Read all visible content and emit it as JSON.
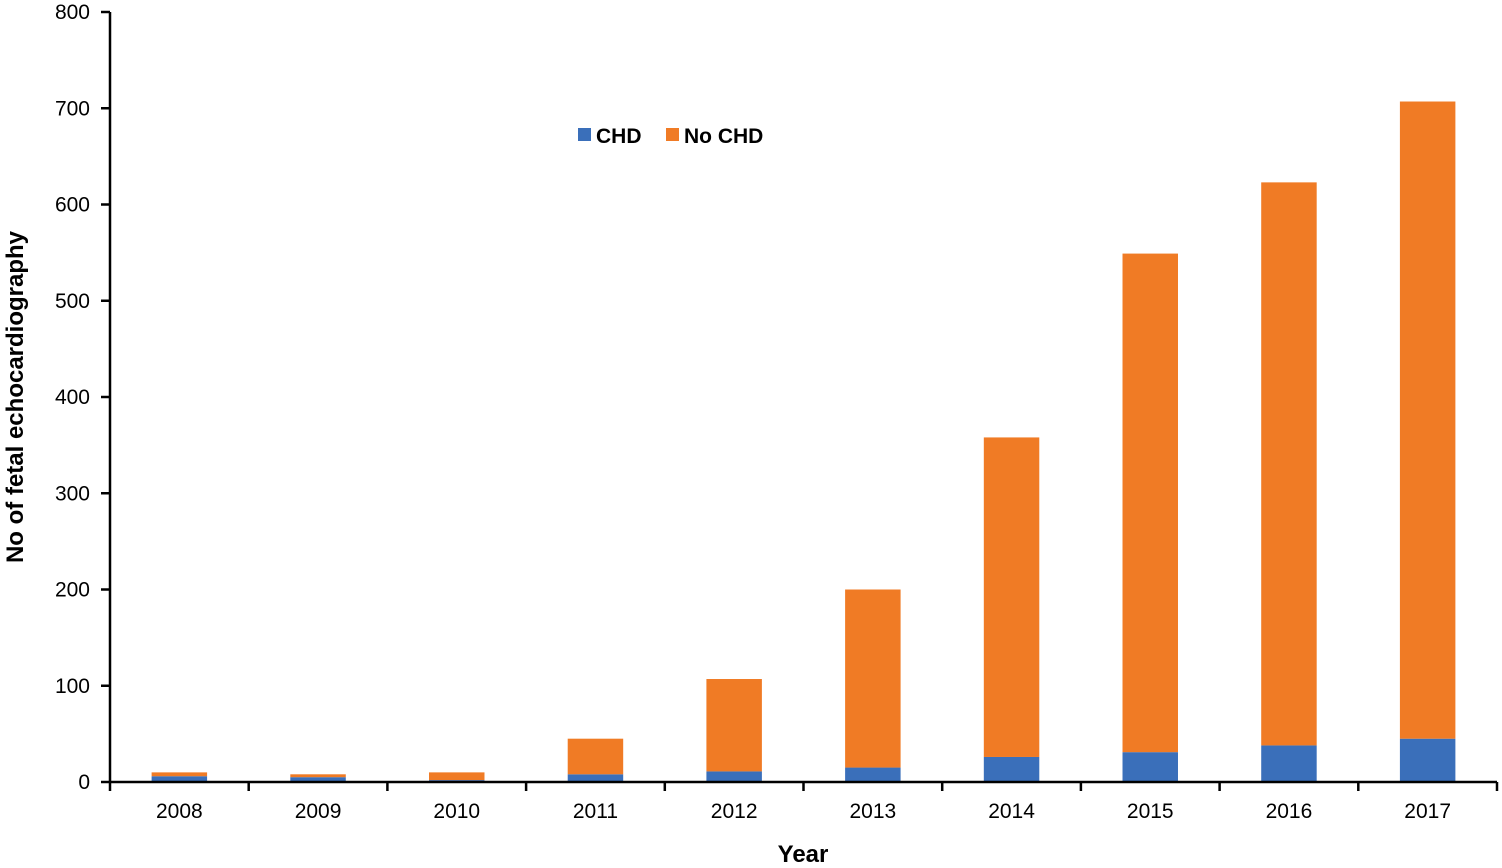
{
  "chart_data": {
    "type": "bar",
    "stacked": true,
    "title": "",
    "xlabel": "Year",
    "ylabel": "No of  fetal echocardiography",
    "ylim": [
      0,
      800
    ],
    "yticks": [
      0,
      100,
      200,
      300,
      400,
      500,
      600,
      700,
      800
    ],
    "categories": [
      "2008",
      "2009",
      "2010",
      "2011",
      "2012",
      "2013",
      "2014",
      "2015",
      "2016",
      "2017"
    ],
    "series": [
      {
        "name": "CHD",
        "color": "#3a6fba",
        "values": [
          6,
          5,
          2,
          8,
          11,
          15,
          26,
          31,
          38,
          45
        ]
      },
      {
        "name": "No CHD",
        "color": "#f07b25",
        "values": [
          4,
          3,
          8,
          37,
          96,
          185,
          332,
          518,
          585,
          662
        ]
      }
    ],
    "legend": "top-center",
    "grid": false
  }
}
